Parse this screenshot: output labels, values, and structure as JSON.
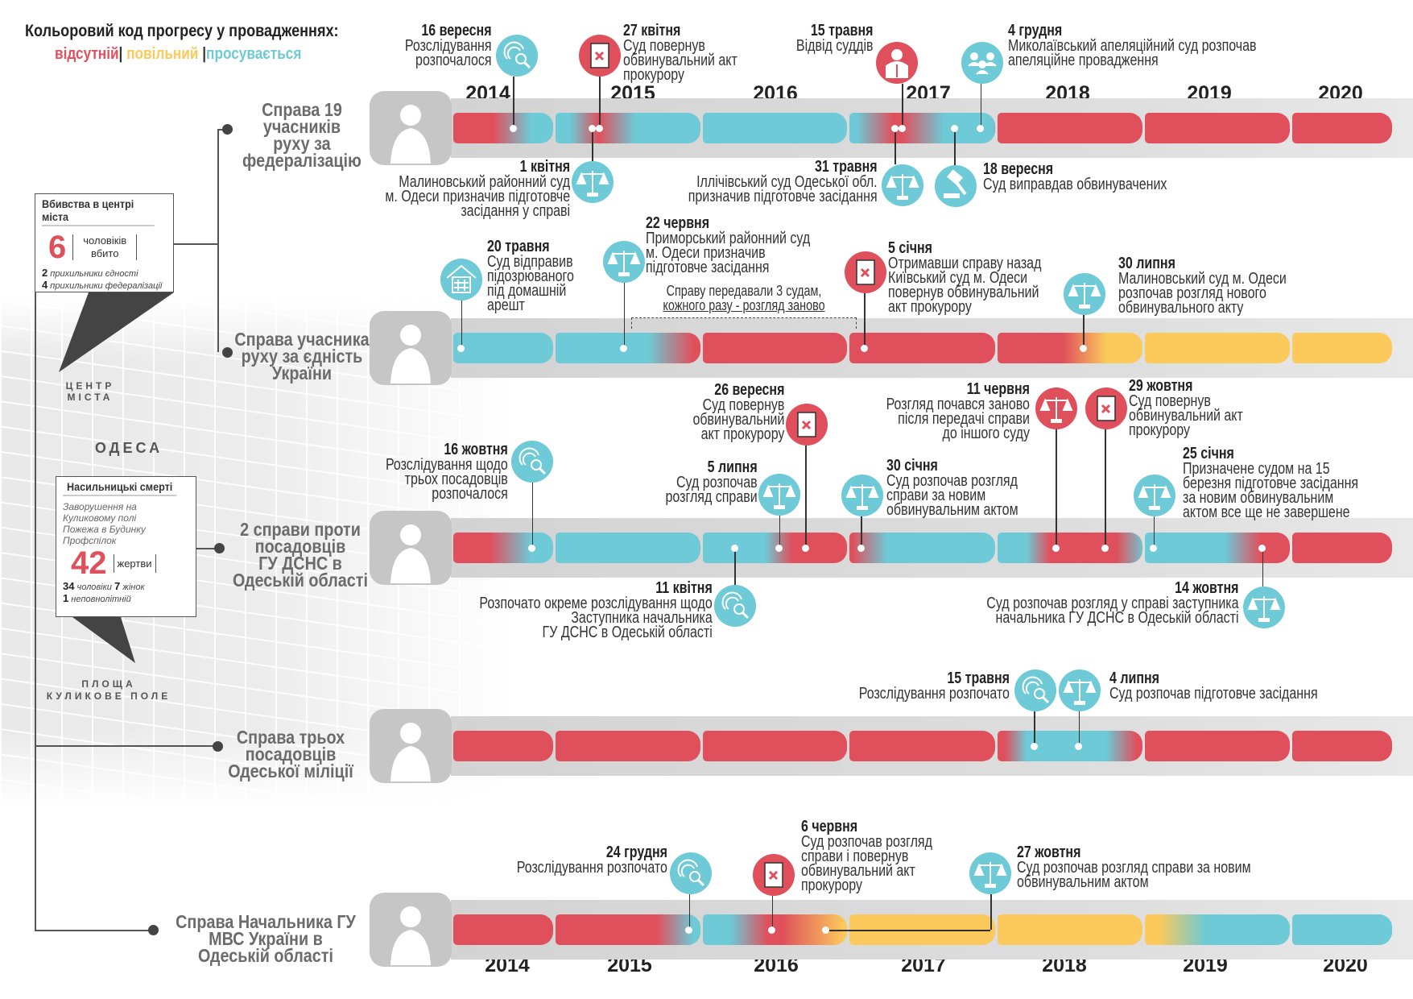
{
  "legend": {
    "title": "Кольоровий код прогресу у провадженнях:",
    "absent": "відсутній",
    "slow": "повільний",
    "progress": "просувається",
    "sep": "|"
  },
  "colors": {
    "absent": "#e0505c",
    "slow": "#fbc95c",
    "progress": "#6dcad6"
  },
  "years": [
    "2014",
    "2015",
    "2016",
    "2017",
    "2018",
    "2019",
    "2020"
  ],
  "map": {
    "center_label": [
      "ЦЕНТР",
      "МІСТА"
    ],
    "city": "ОДЕСА",
    "square_label": [
      "ПЛОЩА",
      "КУЛИКОВЕ ПОЛЕ"
    ]
  },
  "box_center": {
    "title": "Вбивства в центрі міста",
    "number": "6",
    "unit": [
      "чоловіків",
      "вбито"
    ],
    "line1_num": "2",
    "line1": "прихильники єдності",
    "line2_num": "4",
    "line2": "прихильники федералізації"
  },
  "box_kulykove": {
    "title": "Насильницькі смерті",
    "sub1": "Заворушення на Куликовому полі",
    "sub2": "Пожежа в Будинку Профспілок",
    "number": "42",
    "unit": "жертви",
    "men_num": "34",
    "men": "чоловіки",
    "women_num": "7",
    "women": "жінок",
    "minor_num": "1",
    "minor": "неповнолітній"
  },
  "rows": [
    {
      "title": [
        "Справа 19",
        "учасників",
        "руху за",
        "федералізацію"
      ],
      "icon": "clashes-icon",
      "stops": [
        [
          2014,
          "absent"
        ],
        [
          2014.4,
          "absent"
        ],
        [
          2014.78,
          "progress"
        ],
        [
          2015.1,
          "progress"
        ],
        [
          2015.3,
          "absent"
        ],
        [
          2015.55,
          "progress"
        ],
        [
          2017.05,
          "progress"
        ],
        [
          2017.3,
          "absent"
        ],
        [
          2017.36,
          "absent"
        ],
        [
          2017.65,
          "progress"
        ],
        [
          2017.99,
          "progress"
        ],
        [
          2018.0,
          "absent"
        ],
        [
          2021,
          "absent"
        ]
      ],
      "events": [
        {
          "date": "16 вересня",
          "text": [
            "Розслідування",
            "розпочалося"
          ],
          "icon": "investigation",
          "color": "progress",
          "t": 2014.6
        },
        {
          "date": "27 квітня",
          "text": [
            "Суд повернув",
            "обвинувальний акт",
            "прокурору"
          ],
          "icon": "returned-indictment",
          "color": "absent",
          "t": 2015.3
        },
        {
          "date": "1 квітня",
          "text": [
            "Малиновський районний суд",
            "м. Одеси призначив підготовче",
            "засідання у справі"
          ],
          "icon": "scales",
          "color": "progress",
          "t": 2015.25
        },
        {
          "date": "15 травня",
          "text": [
            "Відвід суддів"
          ],
          "icon": "judge",
          "color": "absent",
          "t": 2017.36
        },
        {
          "date": "31 травня",
          "text": [
            "Іллічівський суд Одеської обл.",
            "призначив підготовче засідання"
          ],
          "icon": "scales",
          "color": "progress",
          "t": 2017.31
        },
        {
          "date": "18 вересня",
          "text": [
            "Суд виправдав обвинувачених"
          ],
          "icon": "gavel",
          "color": "progress",
          "t": 2017.72
        },
        {
          "date": "4 грудня",
          "text": [
            "Миколаївський апеляційний суд розпочав",
            "апеляційне провадження"
          ],
          "icon": "people",
          "color": "progress",
          "t": 2017.9
        }
      ]
    },
    {
      "title": [
        "Справа учасника",
        "руху за єдність",
        "України"
      ],
      "icon": "shooter-icon",
      "note": [
        "Справу передавали 3 судам,",
        "кожного разу - розгляд заново"
      ],
      "stops": [
        [
          2014,
          "progress"
        ],
        [
          2015.64,
          "progress"
        ],
        [
          2015.95,
          "absent"
        ],
        [
          2018.45,
          "absent"
        ],
        [
          2018.75,
          "slow"
        ],
        [
          2021,
          "slow"
        ]
      ],
      "events": [
        {
          "date": "20 травня",
          "text": [
            "Суд відправив",
            "підозрюваного",
            "під домашній",
            "арешт"
          ],
          "icon": "house-arrest",
          "color": "progress",
          "t": 2014.08
        },
        {
          "date": "22 червня",
          "text": [
            "Приморський районний суд",
            "м. Одеси призначив",
            "підготовче засідання"
          ],
          "icon": "scales",
          "color": "progress",
          "t": 2015.47
        },
        {
          "date": "5 січня",
          "text": [
            "Отримавши справу назад",
            "Київський суд м. Одеси",
            "повернув обвинувальний",
            "акт прокурору"
          ],
          "icon": "returned-indictment",
          "color": "absent",
          "t": 2017.1
        },
        {
          "date": "30 липня",
          "text": [
            "Малиновський суд м. Одеси",
            "розпочав розгляд нового",
            "обвинувального акту"
          ],
          "icon": "scales",
          "color": "progress",
          "t": 2018.59
        }
      ]
    },
    {
      "title": [
        "2 справи проти",
        "посадовців",
        "ГУ ДСНС в",
        "Одеській області"
      ],
      "icon": "firefighter-icon",
      "stops": [
        [
          2014,
          "absent"
        ],
        [
          2014.37,
          "absent"
        ],
        [
          2014.78,
          "progress"
        ],
        [
          2016.43,
          "progress"
        ],
        [
          2016.62,
          "absent"
        ],
        [
          2017.02,
          "absent"
        ],
        [
          2017.26,
          "progress"
        ],
        [
          2018.2,
          "progress"
        ],
        [
          2018.36,
          "absent"
        ],
        [
          2018.82,
          "absent"
        ],
        [
          2019.0,
          "progress"
        ],
        [
          2019.55,
          "progress"
        ],
        [
          2019.8,
          "absent"
        ],
        [
          2021,
          "absent"
        ]
      ],
      "events": [
        {
          "date": "16 жовтня",
          "text": [
            "Розслідування щодо",
            "трьох посадовців",
            "розпочалося"
          ],
          "icon": "investigation",
          "color": "progress",
          "t": 2014.79
        },
        {
          "date": "11 квітня",
          "text": [
            "Розпочато окреме розслідування щодо",
            "Заступника начальника",
            "ГУ ДСНС в Одеській області"
          ],
          "icon": "investigation",
          "color": "progress",
          "t": 2016.22
        },
        {
          "date": "5 липня",
          "text": [
            "Суд розпочав",
            "розгляд справи"
          ],
          "icon": "scales",
          "color": "progress",
          "t": 2016.53
        },
        {
          "date": "26 вересня",
          "text": [
            "Суд повернув",
            "обвинувальний",
            "акт прокурору"
          ],
          "icon": "returned-indictment",
          "color": "absent",
          "t": 2016.71
        },
        {
          "date": "30 січня",
          "text": [
            "Суд розпочав розгляд",
            "справи за новим",
            "обвинувальним актом"
          ],
          "icon": "scales",
          "color": "progress",
          "t": 2017.08
        },
        {
          "date": "11 червня",
          "text": [
            "Розгляд почався заново",
            "після передачі справи",
            "до іншого суду"
          ],
          "icon": "scales",
          "color": "absent",
          "t": 2018.4
        },
        {
          "date": "29 жовтня",
          "text": [
            "Суд повернув",
            "обвинувальний акт",
            "прокурору"
          ],
          "icon": "returned-indictment",
          "color": "absent",
          "t": 2018.74
        },
        {
          "date": "25 січня",
          "text": [
            "Призначене судом на 15",
            "березня підготовче засідання",
            "за новим обвинувальним",
            "актом все ще не завершене"
          ],
          "icon": "scales",
          "color": "progress",
          "t": 2019.06
        },
        {
          "date": "14 жовтня",
          "text": [
            "Суд розпочав розгляд у справі заступника",
            "начальника ГУ ДСНС в Одеській області"
          ],
          "icon": "scales",
          "color": "progress",
          "t": 2019.81
        }
      ]
    },
    {
      "title": [
        "Справа трьох",
        "посадовців",
        "Одеської міліції"
      ],
      "icon": "police-officer-icon",
      "stops": [
        [
          2014,
          "absent"
        ],
        [
          2018.05,
          "absent"
        ],
        [
          2018.2,
          "progress"
        ],
        [
          2018.75,
          "progress"
        ],
        [
          2018.96,
          "absent"
        ],
        [
          2021,
          "absent"
        ]
      ],
      "events": [
        {
          "date": "15 травня",
          "text": [
            "Розслідування розпочато"
          ],
          "icon": "investigation",
          "color": "progress",
          "t": 2018.25
        },
        {
          "date": "4 липня",
          "text": [
            "Суд розпочав підготовче засідання"
          ],
          "icon": "scales",
          "color": "progress",
          "t": 2018.56
        }
      ]
    },
    {
      "title": [
        "Справа Начальника ГУ",
        "МВС України в",
        "Одеській області"
      ],
      "icon": "police-chief-icon",
      "stops": [
        [
          2014,
          "absent"
        ],
        [
          2015.7,
          "absent"
        ],
        [
          2015.95,
          "progress"
        ],
        [
          2016.19,
          "progress"
        ],
        [
          2016.45,
          "absent"
        ],
        [
          2016.55,
          "absent"
        ],
        [
          2016.98,
          "slow"
        ],
        [
          2019.1,
          "slow"
        ],
        [
          2019.42,
          "progress"
        ],
        [
          2021,
          "progress"
        ]
      ],
      "events": [
        {
          "date": "24 грудня",
          "text": [
            "Розслідування розпочато"
          ],
          "icon": "investigation",
          "color": "progress",
          "t": 2015.92
        },
        {
          "date": "6 червня",
          "text": [
            "Суд розпочав розгляд",
            "справи і повернув",
            "обвинувальний акт",
            "прокурору"
          ],
          "icon": "returned-indictment",
          "color": "absent",
          "t": 2016.48
        },
        {
          "date": "27 жовтня",
          "text": [
            "Суд розпочав розгляд справи за новим",
            "обвинувальним актом"
          ],
          "icon": "scales",
          "color": "progress",
          "t": 2016.85
        }
      ]
    }
  ]
}
